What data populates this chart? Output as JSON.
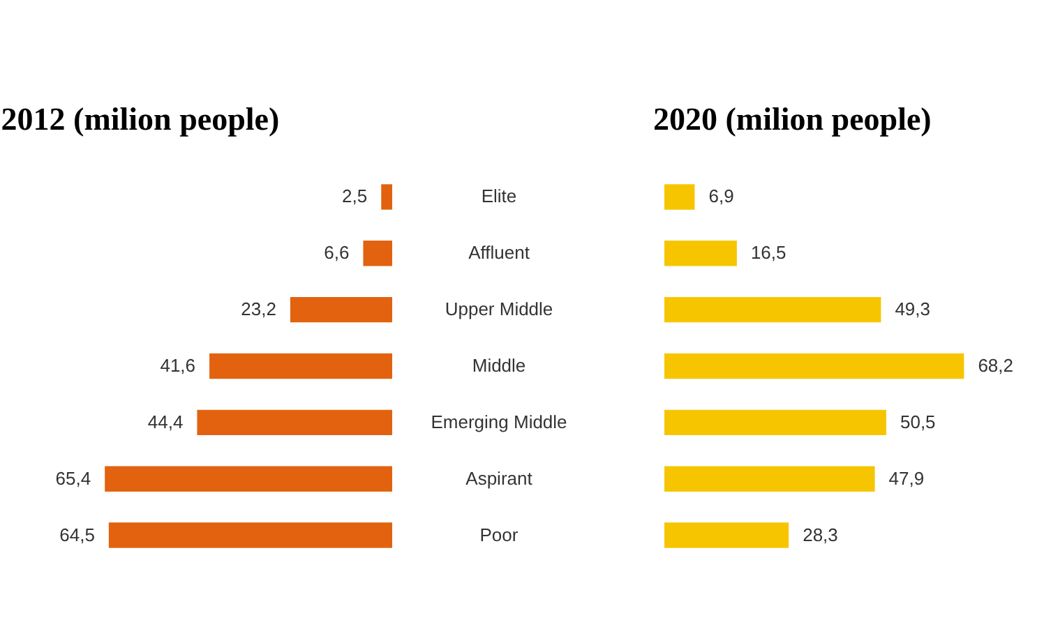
{
  "chart_data": [
    {
      "type": "bar",
      "orientation": "horizontal",
      "title": "2012 (milion people)",
      "categories": [
        "Elite",
        "Affluent",
        "Upper Middle",
        "Middle",
        "Emerging Middle",
        "Aspirant",
        "Poor"
      ],
      "values": [
        2.5,
        6.6,
        23.2,
        41.6,
        44.4,
        65.4,
        64.5
      ],
      "value_labels": [
        "2,5",
        "6,6",
        "23,2",
        "41,6",
        "44,4",
        "65,4",
        "64,5"
      ],
      "color": "#e2620f",
      "tick_labels": "y",
      "grid": false
    },
    {
      "type": "bar",
      "orientation": "horizontal",
      "title": "2020 (milion people)",
      "categories": [
        null,
        null,
        null,
        null,
        null,
        null,
        null
      ],
      "values": [
        6.9,
        16.5,
        49.3,
        68.2,
        50.5,
        47.9,
        28.3
      ],
      "value_labels": [
        "6,9",
        "16,5",
        "49,3",
        "68,2",
        "50,5",
        "47,9",
        "28,3"
      ],
      "color": "#f7c500",
      "tick_labels": false,
      "grid": false
    }
  ]
}
